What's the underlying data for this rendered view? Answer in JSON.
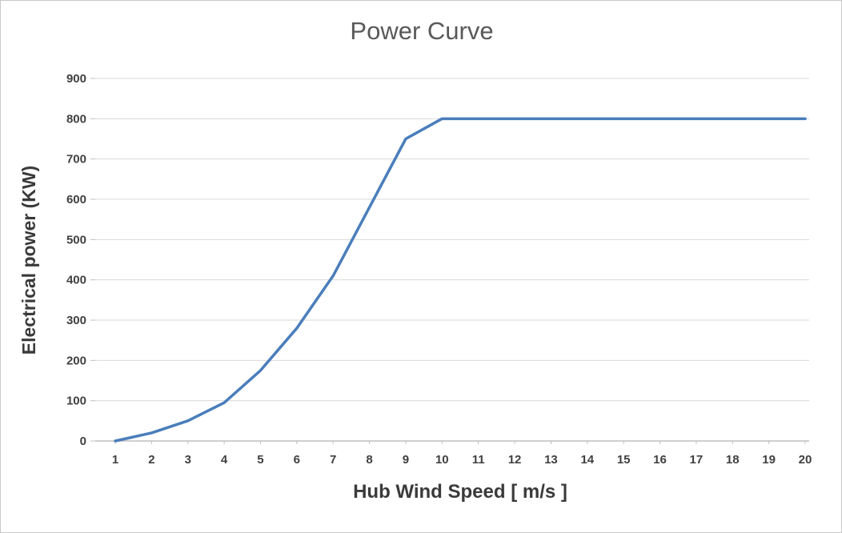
{
  "chart_data": {
    "type": "line",
    "title": "Power Curve",
    "xlabel": "Hub Wind Speed [ m/s ]",
    "ylabel": "Electrical power (KW)",
    "x": [
      1,
      2,
      3,
      4,
      5,
      6,
      7,
      8,
      9,
      10,
      11,
      12,
      13,
      14,
      15,
      16,
      17,
      18,
      19,
      20
    ],
    "values": [
      0,
      20,
      50,
      95,
      175,
      280,
      410,
      580,
      750,
      800,
      800,
      800,
      800,
      800,
      800,
      800,
      800,
      800,
      800,
      800
    ],
    "xlim": [
      1,
      20
    ],
    "ylim": [
      0,
      900
    ],
    "ytick_step": 100,
    "grid": "horizontal",
    "legend": "none",
    "series_name": "Power Curve",
    "line_color": "#4a7ebb",
    "grid_color": "#d9d9d9",
    "axis_color": "#bfbfbf",
    "tick_color": "#404040",
    "title_color": "#595959",
    "axis_title_color": "#3a3a3a"
  }
}
